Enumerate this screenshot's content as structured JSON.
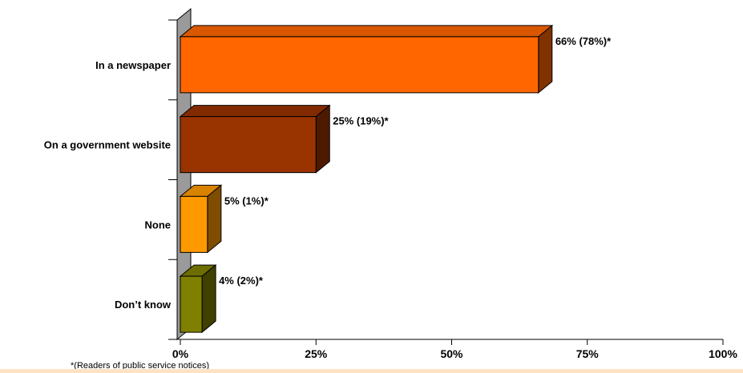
{
  "chart_data": {
    "type": "bar",
    "orientation": "horizontal",
    "categories": [
      "In a newspaper",
      "On a government website",
      "None",
      "Don’t know"
    ],
    "values": [
      66,
      25,
      5,
      4
    ],
    "data_labels": [
      "66% (78%)*",
      "25% (19%)*",
      "5% (1%)*",
      "4% (2%)*"
    ],
    "colors": [
      "#ff6600",
      "#993300",
      "#ff9900",
      "#808000"
    ],
    "xlim": [
      0,
      100
    ],
    "x_ticks": [
      "0%",
      "25%",
      "50%",
      "75%",
      "100%"
    ],
    "grid": false,
    "legend": "none"
  },
  "footnote": "*(Readers of public service notices)"
}
